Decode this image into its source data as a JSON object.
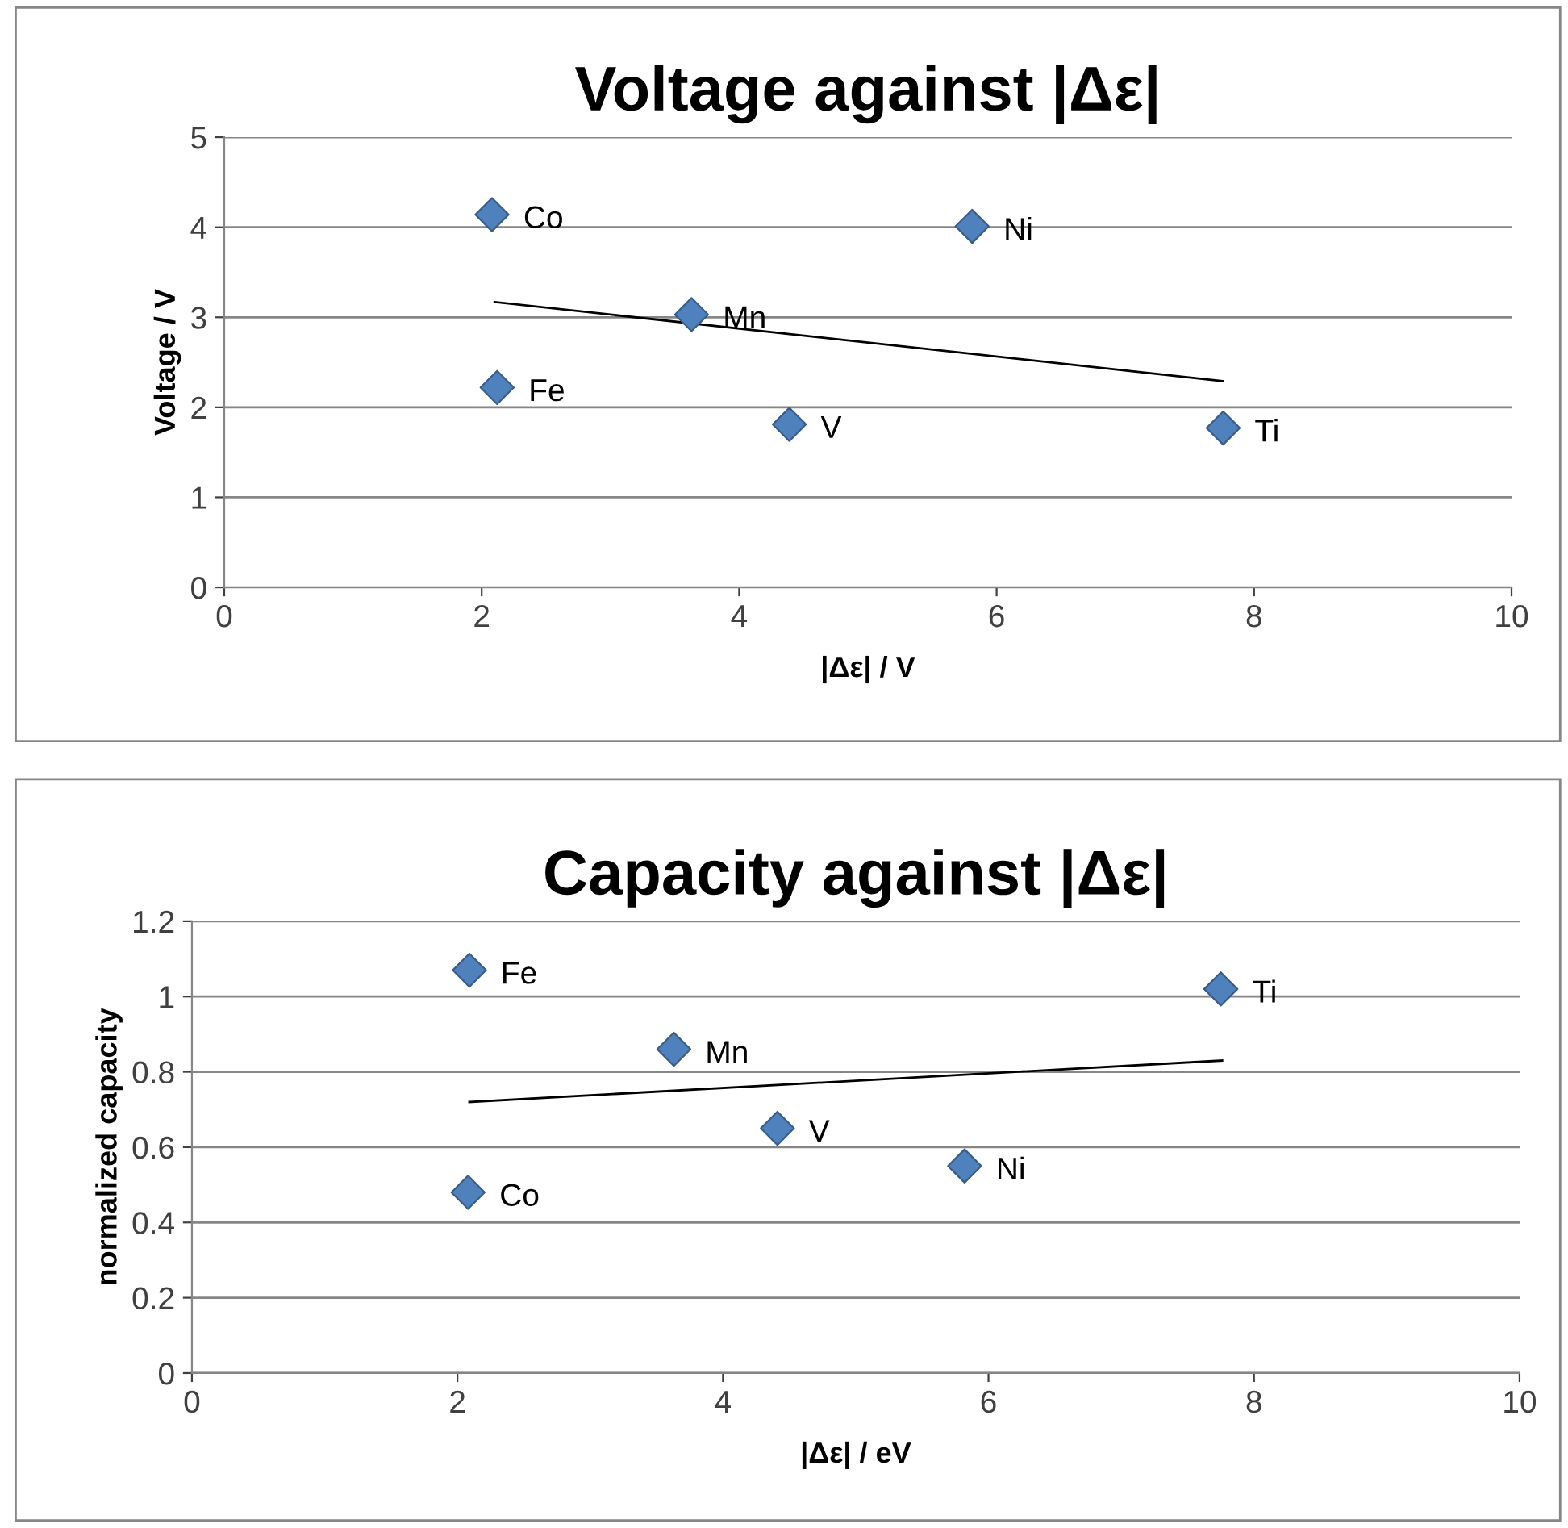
{
  "chart_data": [
    {
      "type": "scatter",
      "title": "Voltage against |Δε|",
      "xlabel": "|Δε| / V",
      "ylabel": "Voltage / V",
      "xlim": [
        0,
        10
      ],
      "xticks": [
        0,
        2,
        4,
        6,
        8,
        10
      ],
      "ylim": [
        0,
        5
      ],
      "yticks": [
        0,
        1,
        2,
        3,
        4,
        5
      ],
      "grid": "y",
      "series": [
        {
          "marker": "diamond",
          "color": "#4f81bd",
          "x": [
            2.08,
            5.81,
            3.63,
            2.12,
            4.39,
            7.76
          ],
          "values": [
            4.14,
            4.01,
            3.03,
            2.22,
            1.81,
            1.77
          ]
        },
        {
          "type": "line",
          "color": "#000000",
          "x": [
            2.1,
            7.76
          ],
          "values": [
            3.17,
            2.29
          ]
        }
      ],
      "annotations": [
        {
          "text": "Co",
          "x": 2.08,
          "y": 4.14
        },
        {
          "text": "Ni",
          "x": 5.81,
          "y": 4.01
        },
        {
          "text": "Mn",
          "x": 3.63,
          "y": 3.03
        },
        {
          "text": "Fe",
          "x": 2.12,
          "y": 2.22
        },
        {
          "text": "V",
          "x": 4.39,
          "y": 1.81
        },
        {
          "text": "Ti",
          "x": 7.76,
          "y": 1.77
        }
      ]
    },
    {
      "type": "scatter",
      "title": "Capacity against |Δε|",
      "xlabel": "|Δε| / eV",
      "ylabel": "normalized capacity",
      "xlim": [
        0,
        10
      ],
      "xticks": [
        0,
        2,
        4,
        6,
        8,
        10
      ],
      "ylim": [
        0,
        1.2
      ],
      "yticks": [
        0,
        0.2,
        0.4,
        0.6,
        0.8,
        1,
        1.2
      ],
      "grid": "y",
      "series": [
        {
          "marker": "diamond",
          "color": "#4f81bd",
          "x": [
            2.09,
            7.75,
            3.63,
            4.41,
            5.82,
            2.08
          ],
          "values": [
            1.07,
            1.02,
            0.86,
            0.65,
            0.55,
            0.48
          ]
        },
        {
          "type": "line",
          "color": "#000000",
          "x": [
            2.09,
            7.76
          ],
          "values": [
            0.72,
            0.83
          ]
        }
      ],
      "annotations": [
        {
          "text": "Fe",
          "x": 2.09,
          "y": 1.07
        },
        {
          "text": "Ti",
          "x": 7.75,
          "y": 1.02
        },
        {
          "text": "Mn",
          "x": 3.63,
          "y": 0.86
        },
        {
          "text": "V",
          "x": 4.41,
          "y": 0.65
        },
        {
          "text": "Ni",
          "x": 5.82,
          "y": 0.55
        },
        {
          "text": "Co",
          "x": 2.08,
          "y": 0.48
        }
      ]
    }
  ]
}
